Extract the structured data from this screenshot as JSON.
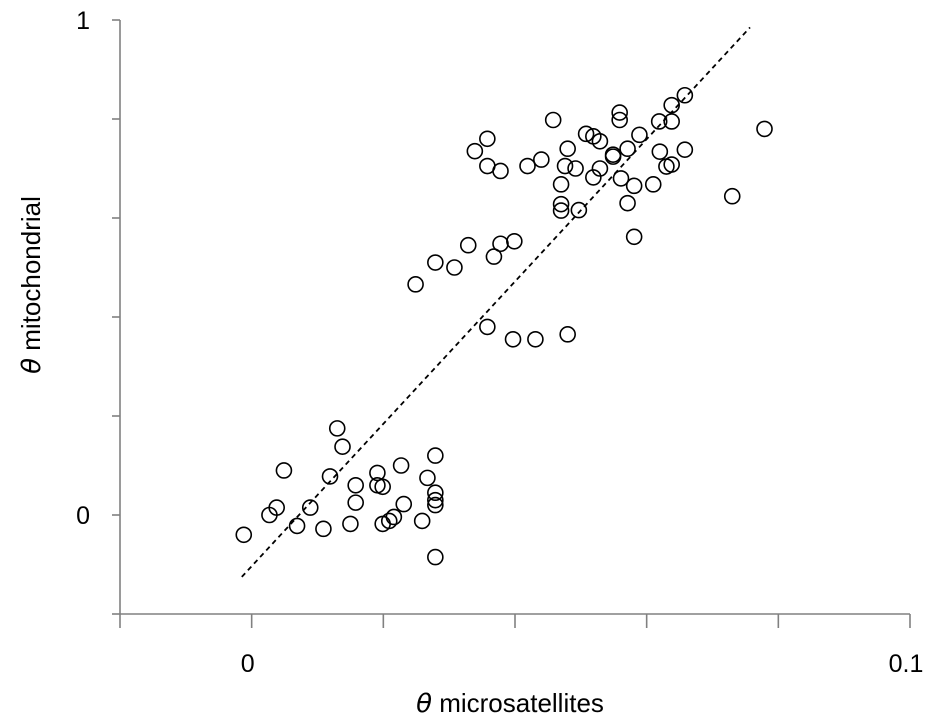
{
  "chart_data": {
    "type": "scatter",
    "title": "",
    "xlabel_symbol": "θ",
    "xlabel_text": " microsatellites",
    "ylabel_symbol": "θ",
    "ylabel_text": " mitochondrial",
    "xlim": [
      -0.02,
      0.1
    ],
    "ylim": [
      -0.2,
      1.0
    ],
    "x_ticks": [
      {
        "value": 0,
        "label": "0"
      },
      {
        "value": 0.1,
        "label": "0.1"
      }
    ],
    "y_ticks": [
      {
        "value": 0,
        "label": "0"
      },
      {
        "value": 1,
        "label": "1"
      }
    ],
    "x_minor_ticks": [
      -0.02,
      0,
      0.02,
      0.04,
      0.06,
      0.08,
      0.1
    ],
    "y_minor_ticks": [
      -0.2,
      0,
      0.2,
      0.4,
      0.6,
      0.8,
      1.0
    ],
    "grid": false,
    "legend": "none",
    "marker": "open-circle",
    "trendline": {
      "style": "dashed",
      "x": [
        -0.0015,
        0.0757
      ],
      "y": [
        -0.125,
        0.985
      ]
    },
    "points": [
      [
        -0.0012,
        -0.04
      ],
      [
        0.0027,
        0.0
      ],
      [
        0.0038,
        0.015
      ],
      [
        0.0049,
        0.09
      ],
      [
        0.0069,
        -0.022
      ],
      [
        0.0089,
        0.015
      ],
      [
        0.0109,
        -0.028
      ],
      [
        0.0119,
        0.078
      ],
      [
        0.013,
        0.175
      ],
      [
        0.0138,
        0.138
      ],
      [
        0.015,
        -0.018
      ],
      [
        0.0158,
        0.06
      ],
      [
        0.0158,
        0.025
      ],
      [
        0.0191,
        0.085
      ],
      [
        0.0191,
        0.06
      ],
      [
        0.0199,
        -0.018
      ],
      [
        0.0199,
        0.057
      ],
      [
        0.0209,
        -0.012
      ],
      [
        0.0216,
        -0.004
      ],
      [
        0.0227,
        0.1
      ],
      [
        0.0231,
        0.022
      ],
      [
        0.0249,
        0.466
      ],
      [
        0.0259,
        -0.012
      ],
      [
        0.0267,
        0.075
      ],
      [
        0.0279,
        0.51
      ],
      [
        0.0279,
        0.12
      ],
      [
        0.0279,
        0.045
      ],
      [
        0.0279,
        0.03
      ],
      [
        0.0279,
        0.02
      ],
      [
        0.0279,
        -0.085
      ],
      [
        0.0308,
        0.5
      ],
      [
        0.0329,
        0.545
      ],
      [
        0.0339,
        0.735
      ],
      [
        0.0358,
        0.76
      ],
      [
        0.0358,
        0.705
      ],
      [
        0.0358,
        0.38
      ],
      [
        0.0368,
        0.522
      ],
      [
        0.0378,
        0.695
      ],
      [
        0.0378,
        0.548
      ],
      [
        0.0397,
        0.355
      ],
      [
        0.0399,
        0.553
      ],
      [
        0.0419,
        0.705
      ],
      [
        0.0431,
        0.355
      ],
      [
        0.044,
        0.718
      ],
      [
        0.0458,
        0.798
      ],
      [
        0.047,
        0.668
      ],
      [
        0.047,
        0.628
      ],
      [
        0.047,
        0.615
      ],
      [
        0.0476,
        0.705
      ],
      [
        0.048,
        0.74
      ],
      [
        0.048,
        0.365
      ],
      [
        0.0492,
        0.7
      ],
      [
        0.0497,
        0.616
      ],
      [
        0.0508,
        0.77
      ],
      [
        0.0519,
        0.765
      ],
      [
        0.0519,
        0.682
      ],
      [
        0.0529,
        0.755
      ],
      [
        0.0529,
        0.7
      ],
      [
        0.0549,
        0.728
      ],
      [
        0.0549,
        0.724
      ],
      [
        0.0559,
        0.798
      ],
      [
        0.0559,
        0.813
      ],
      [
        0.0561,
        0.68
      ],
      [
        0.0571,
        0.74
      ],
      [
        0.0571,
        0.63
      ],
      [
        0.0581,
        0.665
      ],
      [
        0.0581,
        0.562
      ],
      [
        0.0589,
        0.768
      ],
      [
        0.061,
        0.668
      ],
      [
        0.0619,
        0.795
      ],
      [
        0.062,
        0.734
      ],
      [
        0.063,
        0.704
      ],
      [
        0.0638,
        0.795
      ],
      [
        0.0638,
        0.828
      ],
      [
        0.0638,
        0.708
      ],
      [
        0.0658,
        0.848
      ],
      [
        0.0658,
        0.738
      ],
      [
        0.073,
        0.644
      ],
      [
        0.0779,
        0.78
      ]
    ]
  }
}
